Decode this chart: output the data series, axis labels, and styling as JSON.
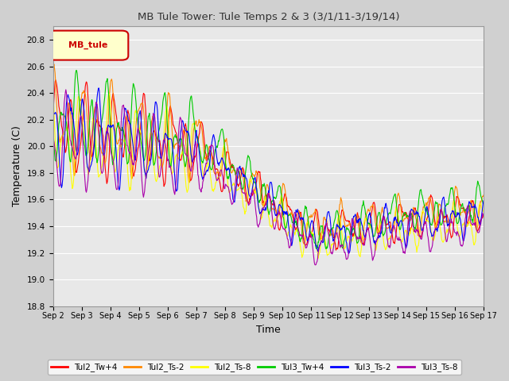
{
  "title": "MB Tule Tower: Tule Temps 2 & 3 (3/1/11-3/19/14)",
  "xlabel": "Time",
  "ylabel": "Temperature (C)",
  "ylim": [
    18.8,
    20.9
  ],
  "yticks": [
    18.8,
    19.0,
    19.2,
    19.4,
    19.6,
    19.8,
    20.0,
    20.2,
    20.4,
    20.6,
    20.8
  ],
  "xlim": [
    0,
    15
  ],
  "xtick_labels": [
    "Sep 2",
    "Sep 3",
    "Sep 4",
    "Sep 5",
    "Sep 6",
    "Sep 7",
    "Sep 8",
    "Sep 9",
    "Sep 10",
    "Sep 11",
    "Sep 12",
    "Sep 13",
    "Sep 14",
    "Sep 15",
    "Sep 16",
    "Sep 17"
  ],
  "legend_label": "MB_tule",
  "series_colors": {
    "Tul2_Tw+4": "#ff0000",
    "Tul2_Ts-2": "#ff8800",
    "Tul2_Ts-8": "#ffff00",
    "Tul3_Tw+4": "#00cc00",
    "Tul3_Ts-2": "#0000ff",
    "Tul3_Ts-8": "#aa00aa"
  },
  "figsize": [
    6.4,
    4.8
  ],
  "dpi": 100
}
